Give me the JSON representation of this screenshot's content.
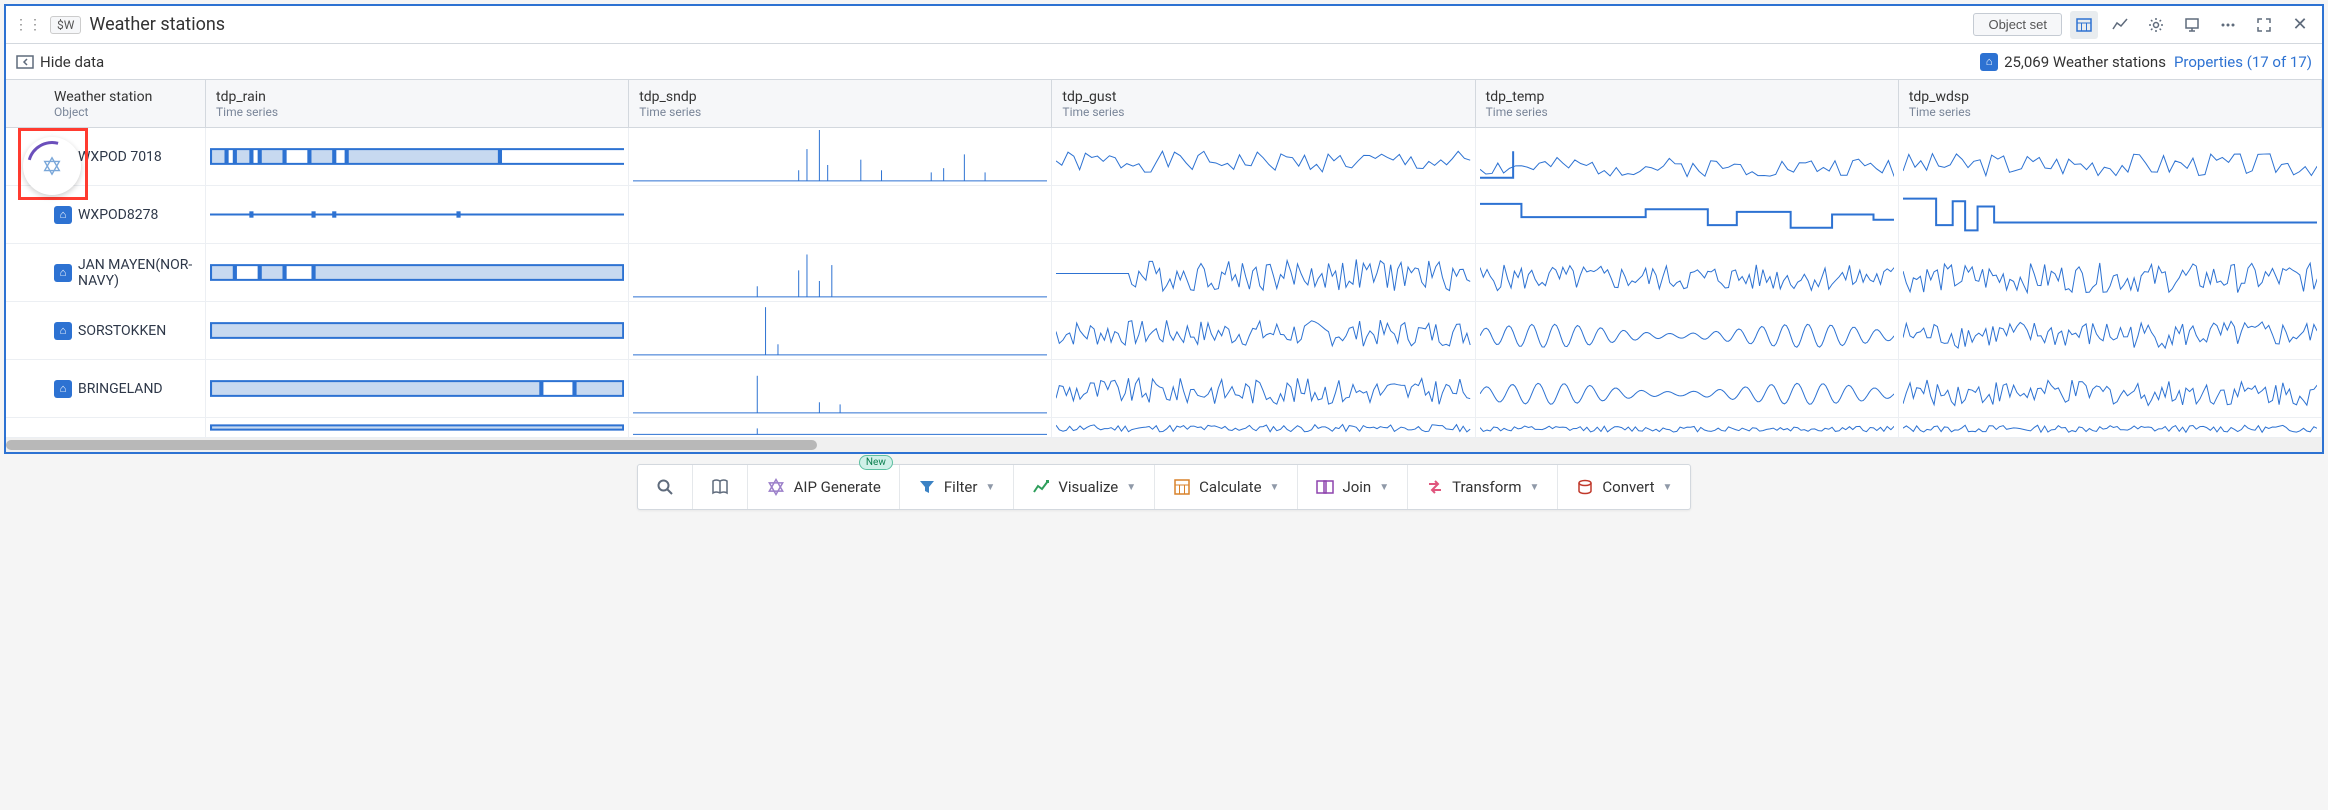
{
  "header": {
    "badge": "$W",
    "title": "Weather stations",
    "object_set_label": "Object set"
  },
  "subheader": {
    "hide_data_label": "Hide data",
    "count_text": "25,069 Weather stations",
    "properties_link": "Properties (17 of 17)"
  },
  "columns": [
    {
      "key": "name",
      "title": "Weather station",
      "sub": "Object"
    },
    {
      "key": "tdp_rain",
      "title": "tdp_rain",
      "sub": "Time series"
    },
    {
      "key": "tdp_sndp",
      "title": "tdp_sndp",
      "sub": "Time series"
    },
    {
      "key": "tdp_gust",
      "title": "tdp_gust",
      "sub": "Time series"
    },
    {
      "key": "tdp_temp",
      "title": "tdp_temp",
      "sub": "Time series"
    },
    {
      "key": "tdp_wdsp",
      "title": "tdp_wdsp",
      "sub": "Time series"
    }
  ],
  "rows": [
    {
      "name": "WXPOD 7018",
      "series": {
        "tdp_rain": {
          "type": "blocks",
          "segments": [
            [
              0,
              4
            ],
            [
              6,
              10
            ],
            [
              12,
              18
            ],
            [
              24,
              30
            ],
            [
              33,
              70
            ]
          ]
        },
        "tdp_sndp": {
          "type": "spikes",
          "spikes": [
            [
              40,
              10
            ],
            [
              42,
              30
            ],
            [
              45,
              50
            ],
            [
              47,
              15
            ],
            [
              55,
              20
            ],
            [
              60,
              10
            ],
            [
              72,
              8
            ],
            [
              75,
              12
            ],
            [
              80,
              25
            ],
            [
              85,
              8
            ]
          ]
        },
        "tdp_gust": {
          "type": "noise",
          "base": 40,
          "amp": 20,
          "seed": 1
        },
        "tdp_temp": {
          "type": "noise",
          "base": 30,
          "amp": 18,
          "seed": 2,
          "step_prefix": true
        },
        "tdp_wdsp": {
          "type": "noise",
          "base": 35,
          "amp": 22,
          "seed": 3
        }
      }
    },
    {
      "name": "WXPOD8278",
      "series": {
        "tdp_rain": {
          "type": "flatline",
          "dots": [
            [
              10
            ],
            [
              25
            ],
            [
              30
            ],
            [
              60
            ]
          ]
        },
        "tdp_sndp": {
          "type": "empty"
        },
        "tdp_gust": {
          "type": "empty"
        },
        "tdp_temp": {
          "type": "steps",
          "levels": [
            [
              0,
              70
            ],
            [
              10,
              45
            ],
            [
              40,
              60
            ],
            [
              55,
              30
            ],
            [
              62,
              55
            ],
            [
              75,
              25
            ],
            [
              85,
              50
            ],
            [
              95,
              40
            ]
          ]
        },
        "tdp_wdsp": {
          "type": "steps",
          "levels": [
            [
              0,
              80
            ],
            [
              8,
              30
            ],
            [
              12,
              75
            ],
            [
              15,
              20
            ],
            [
              18,
              65
            ],
            [
              22,
              35
            ],
            [
              100,
              35
            ]
          ]
        }
      }
    },
    {
      "name": "JAN MAYEN(NOR-NAVY)",
      "series": {
        "tdp_rain": {
          "type": "blocks",
          "segments": [
            [
              0,
              6
            ],
            [
              12,
              18
            ],
            [
              25,
              100
            ]
          ]
        },
        "tdp_sndp": {
          "type": "spikes",
          "spikes": [
            [
              30,
              10
            ],
            [
              40,
              25
            ],
            [
              42,
              40
            ],
            [
              45,
              15
            ],
            [
              48,
              30
            ]
          ]
        },
        "tdp_gust": {
          "type": "dense",
          "base": 45,
          "amp": 30,
          "seed": 4,
          "gap": [
            0,
            18
          ]
        },
        "tdp_temp": {
          "type": "dense",
          "base": 40,
          "amp": 25,
          "seed": 5
        },
        "tdp_wdsp": {
          "type": "dense",
          "base": 40,
          "amp": 28,
          "seed": 6
        }
      }
    },
    {
      "name": "SORSTOKKEN",
      "series": {
        "tdp_rain": {
          "type": "blocks",
          "segments": [
            [
              0,
              100
            ]
          ]
        },
        "tdp_sndp": {
          "type": "spikes",
          "spikes": [
            [
              32,
              45
            ],
            [
              35,
              10
            ]
          ]
        },
        "tdp_gust": {
          "type": "dense",
          "base": 45,
          "amp": 25,
          "seed": 7
        },
        "tdp_temp": {
          "type": "wave",
          "base": 40,
          "amp": 22,
          "freq": 18
        },
        "tdp_wdsp": {
          "type": "dense",
          "base": 42,
          "amp": 26,
          "seed": 8
        }
      }
    },
    {
      "name": "BRINGELAND",
      "series": {
        "tdp_rain": {
          "type": "blocks",
          "segments": [
            [
              0,
              80
            ],
            [
              88,
              100
            ]
          ]
        },
        "tdp_sndp": {
          "type": "spikes",
          "spikes": [
            [
              30,
              35
            ],
            [
              45,
              10
            ],
            [
              50,
              8
            ]
          ]
        },
        "tdp_gust": {
          "type": "dense",
          "base": 45,
          "amp": 25,
          "seed": 9
        },
        "tdp_temp": {
          "type": "wave",
          "base": 40,
          "amp": 20,
          "freq": 16
        },
        "tdp_wdsp": {
          "type": "dense",
          "base": 42,
          "amp": 24,
          "seed": 10
        }
      }
    },
    {
      "name": "",
      "series": {
        "tdp_rain": {
          "type": "blocks",
          "segments": [
            [
              0,
              100
            ]
          ],
          "partial": true
        },
        "tdp_sndp": {
          "type": "spikes",
          "spikes": [
            [
              30,
              20
            ]
          ],
          "partial": true
        },
        "tdp_gust": {
          "type": "dense",
          "base": 45,
          "amp": 25,
          "seed": 11,
          "partial": true
        },
        "tdp_temp": {
          "type": "dense",
          "base": 40,
          "amp": 20,
          "seed": 12,
          "partial": true
        },
        "tdp_wdsp": {
          "type": "dense",
          "base": 42,
          "amp": 24,
          "seed": 13,
          "partial": true
        }
      },
      "partial": true
    }
  ],
  "toolbar": {
    "items": [
      {
        "key": "search",
        "icon": "search",
        "label": ""
      },
      {
        "key": "book",
        "icon": "book",
        "label": ""
      },
      {
        "key": "aip",
        "icon": "aip",
        "label": "AIP Generate",
        "new": true
      },
      {
        "key": "filter",
        "icon": "filter",
        "label": "Filter",
        "chevron": true
      },
      {
        "key": "visualize",
        "icon": "chart",
        "label": "Visualize",
        "chevron": true
      },
      {
        "key": "calculate",
        "icon": "calc",
        "label": "Calculate",
        "chevron": true
      },
      {
        "key": "join",
        "icon": "join",
        "label": "Join",
        "chevron": true
      },
      {
        "key": "transform",
        "icon": "transform",
        "label": "Transform",
        "chevron": true
      },
      {
        "key": "convert",
        "icon": "convert",
        "label": "Convert",
        "chevron": true
      }
    ],
    "new_tag": "New"
  },
  "colors": {
    "accent": "#2d72d2",
    "spark_fill": "#c7d9f0",
    "highlight_box": "#ff3b30",
    "loader_arc": "#6b4fbb"
  }
}
